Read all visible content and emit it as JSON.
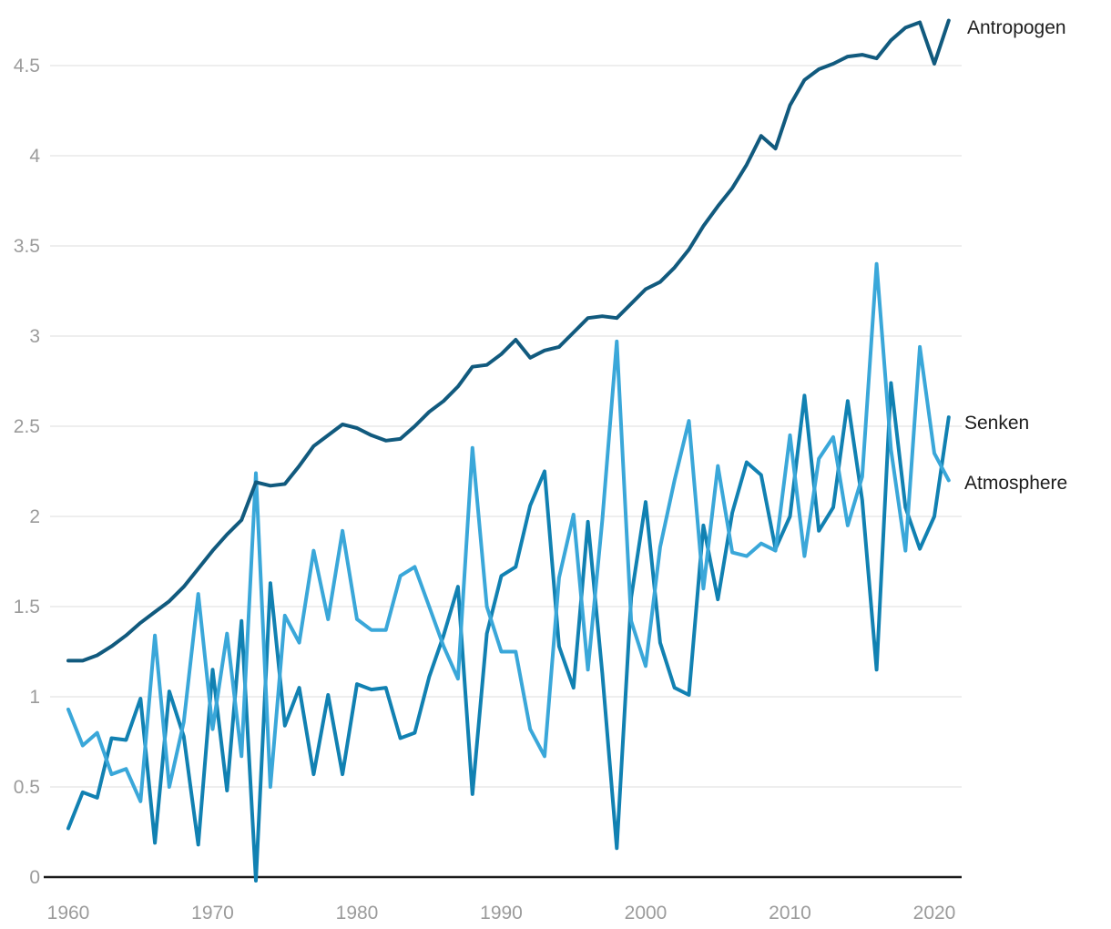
{
  "chart_data": {
    "type": "line",
    "title": "",
    "xlabel": "",
    "ylabel": "",
    "x": [
      1960,
      1961,
      1962,
      1963,
      1964,
      1965,
      1966,
      1967,
      1968,
      1969,
      1970,
      1971,
      1972,
      1973,
      1974,
      1975,
      1976,
      1977,
      1978,
      1979,
      1980,
      1981,
      1982,
      1983,
      1984,
      1985,
      1986,
      1987,
      1988,
      1989,
      1990,
      1991,
      1992,
      1993,
      1994,
      1995,
      1996,
      1997,
      1998,
      1999,
      2000,
      2001,
      2002,
      2003,
      2004,
      2005,
      2006,
      2007,
      2008,
      2009,
      2010,
      2011,
      2012,
      2013,
      2014,
      2015,
      2016,
      2017,
      2018,
      2019,
      2020,
      2021
    ],
    "series": [
      {
        "name": "Antropogen",
        "color": "#115a7e",
        "values": [
          1.2,
          1.2,
          1.23,
          1.28,
          1.34,
          1.41,
          1.47,
          1.53,
          1.61,
          1.71,
          1.81,
          1.9,
          1.98,
          2.19,
          2.17,
          2.18,
          2.28,
          2.39,
          2.45,
          2.51,
          2.49,
          2.45,
          2.42,
          2.43,
          2.5,
          2.58,
          2.64,
          2.72,
          2.83,
          2.84,
          2.9,
          2.98,
          2.88,
          2.92,
          2.94,
          3.02,
          3.1,
          3.11,
          3.1,
          3.18,
          3.26,
          3.3,
          3.38,
          3.48,
          3.61,
          3.72,
          3.82,
          3.95,
          4.11,
          4.04,
          4.28,
          4.42,
          4.48,
          4.51,
          4.55,
          4.56,
          4.54,
          4.64,
          4.71,
          4.74,
          4.51,
          4.75
        ]
      },
      {
        "name": "Senken",
        "color": "#1181b2",
        "values": [
          0.27,
          0.47,
          0.44,
          0.77,
          0.76,
          0.99,
          0.19,
          1.03,
          0.78,
          0.18,
          1.15,
          0.48,
          1.42,
          -0.02,
          1.63,
          0.84,
          1.05,
          0.57,
          1.01,
          0.57,
          1.07,
          1.04,
          1.05,
          0.77,
          0.8,
          1.11,
          1.34,
          1.61,
          0.46,
          1.35,
          1.67,
          1.72,
          2.06,
          2.25,
          1.28,
          1.05,
          1.97,
          1.13,
          0.16,
          1.55,
          2.08,
          1.3,
          1.05,
          1.01,
          1.95,
          1.54,
          2.02,
          2.3,
          2.23,
          1.82,
          2.0,
          2.67,
          1.92,
          2.05,
          2.64,
          2.09,
          1.15,
          2.74,
          2.05,
          1.82,
          2.0,
          2.55
        ]
      },
      {
        "name": "Atmosphere",
        "color": "#3aa7d9",
        "values": [
          0.93,
          0.73,
          0.8,
          0.57,
          0.6,
          0.42,
          1.34,
          0.5,
          0.86,
          1.57,
          0.82,
          1.35,
          0.67,
          2.24,
          0.5,
          1.45,
          1.3,
          1.81,
          1.43,
          1.92,
          1.43,
          1.37,
          1.37,
          1.67,
          1.72,
          1.5,
          1.28,
          1.1,
          2.38,
          1.5,
          1.25,
          1.25,
          0.82,
          0.67,
          1.66,
          2.01,
          1.15,
          1.98,
          2.97,
          1.42,
          1.17,
          1.83,
          2.2,
          2.53,
          1.6,
          2.28,
          1.8,
          1.78,
          1.85,
          1.81,
          2.45,
          1.78,
          2.32,
          2.44,
          1.95,
          2.22,
          3.4,
          2.37,
          1.81,
          2.94,
          2.35,
          2.2
        ]
      }
    ],
    "y_ticks": [
      0,
      0.5,
      1,
      1.5,
      2,
      2.5,
      3,
      3.5,
      4,
      4.5
    ],
    "y_tick_labels": [
      "0",
      "0.5",
      "1",
      "1.5",
      "2",
      "2.5",
      "3",
      "3.5",
      "4",
      "4.5"
    ],
    "x_ticks": [
      1960,
      1970,
      1980,
      1990,
      2000,
      2010,
      2020
    ],
    "x_tick_labels": [
      "1960",
      "1970",
      "1980",
      "1990",
      "2000",
      "2010",
      "2020"
    ],
    "ylim": [
      0,
      4.82
    ],
    "xlim": [
      1960,
      2021
    ],
    "grid": "horizontal",
    "legend_position": "line-end-labels-right",
    "colors": {
      "background": "#ffffff",
      "gridline": "#e8e8e8",
      "axis_line": "#1a1a1a",
      "tick_label": "#9b9b9b",
      "series_label": "#1d1d1d"
    }
  }
}
